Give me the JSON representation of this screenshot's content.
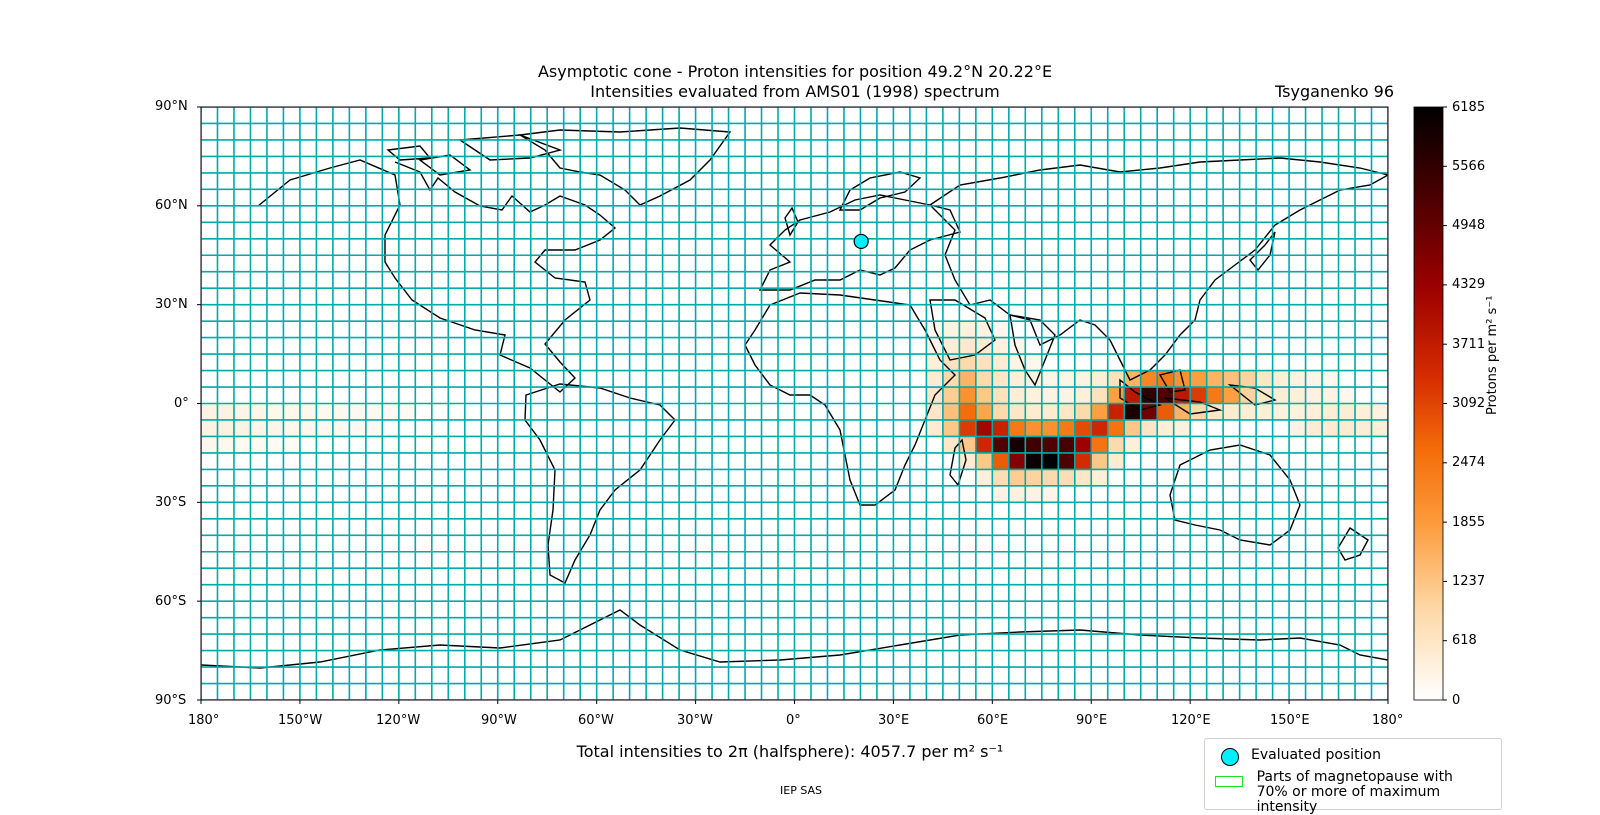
{
  "title_line1": "Asymptotic cone - Proton intensities for position 49.2°N 20.22°E",
  "title_line2": "Intensities evaluated from AMS01 (1998) spectrum",
  "model": "Tsyganenko 96",
  "lat_labels": [
    "90°N",
    "60°N",
    "30°N",
    "0°",
    "30°S",
    "60°S",
    "90°S"
  ],
  "lon_labels": [
    "180°",
    "150°W",
    "120°W",
    "90°W",
    "60°W",
    "30°W",
    "0°",
    "30°E",
    "60°E",
    "90°E",
    "120°E",
    "150°E",
    "180°"
  ],
  "colorbar": {
    "label": "Protons per m² s⁻¹",
    "ticks": [
      "6185",
      "5566",
      "4948",
      "4329",
      "3711",
      "3092",
      "2474",
      "1855",
      "1237",
      "618",
      "0"
    ],
    "min": 0,
    "max": 6185
  },
  "total_text": "Total intensities to 2π (halfsphere): 4057.7 per m² s⁻¹",
  "credit": "IEP SAS",
  "legend": {
    "evaluated": "Evaluated position",
    "magnetopause_line1": "Parts of magnetopause with",
    "magnetopause_line2": "70% or more of maximum intensity"
  },
  "evaluated_position": {
    "lat": 49.2,
    "lon": 20.22
  },
  "grid": {
    "lon_step_deg": 5,
    "lat_step_deg": 5
  },
  "colors": {
    "grid": "#00aaaa",
    "position_marker": "#00f0ff",
    "legend_magnetopause": "#22e022"
  },
  "intensity_cells": [
    {
      "lon": -180,
      "lat": -5,
      "v": 300
    },
    {
      "lon": -175,
      "lat": -5,
      "v": 300
    },
    {
      "lon": -170,
      "lat": -5,
      "v": 250
    },
    {
      "lon": -165,
      "lat": -5,
      "v": 250
    },
    {
      "lon": -160,
      "lat": -5,
      "v": 200
    },
    {
      "lon": -155,
      "lat": -5,
      "v": 200
    },
    {
      "lon": -150,
      "lat": -5,
      "v": 200
    },
    {
      "lon": -145,
      "lat": -5,
      "v": 180
    },
    {
      "lon": -140,
      "lat": -5,
      "v": 180
    },
    {
      "lon": -135,
      "lat": -5,
      "v": 160
    },
    {
      "lon": -130,
      "lat": -5,
      "v": 160
    },
    {
      "lon": -125,
      "lat": -5,
      "v": 150
    },
    {
      "lon": -120,
      "lat": -5,
      "v": 150
    },
    {
      "lon": -180,
      "lat": -10,
      "v": 300
    },
    {
      "lon": -175,
      "lat": -10,
      "v": 350
    },
    {
      "lon": -170,
      "lat": -10,
      "v": 300
    },
    {
      "lon": -165,
      "lat": -10,
      "v": 250
    },
    {
      "lon": -160,
      "lat": -10,
      "v": 250
    },
    {
      "lon": -155,
      "lat": -10,
      "v": 200
    },
    {
      "lon": -150,
      "lat": -10,
      "v": 200
    },
    {
      "lon": -145,
      "lat": -10,
      "v": 180
    },
    {
      "lon": -140,
      "lat": -10,
      "v": 180
    },
    {
      "lon": -135,
      "lat": -10,
      "v": 160
    },
    {
      "lon": -130,
      "lat": -10,
      "v": 150
    },
    {
      "lon": -180,
      "lat": -15,
      "v": 200
    },
    {
      "lon": -175,
      "lat": -15,
      "v": 200
    },
    {
      "lon": -170,
      "lat": -15,
      "v": 150
    },
    {
      "lon": -165,
      "lat": -15,
      "v": 150
    },
    {
      "lon": -160,
      "lat": -15,
      "v": 120
    },
    {
      "lon": -155,
      "lat": -15,
      "v": 100
    },
    {
      "lon": 40,
      "lat": 20,
      "v": 200
    },
    {
      "lon": 45,
      "lat": 20,
      "v": 300
    },
    {
      "lon": 50,
      "lat": 20,
      "v": 350
    },
    {
      "lon": 55,
      "lat": 20,
      "v": 300
    },
    {
      "lon": 60,
      "lat": 20,
      "v": 200
    },
    {
      "lon": 40,
      "lat": 15,
      "v": 300
    },
    {
      "lon": 45,
      "lat": 15,
      "v": 450
    },
    {
      "lon": 50,
      "lat": 15,
      "v": 550
    },
    {
      "lon": 55,
      "lat": 15,
      "v": 500
    },
    {
      "lon": 60,
      "lat": 15,
      "v": 350
    },
    {
      "lon": 65,
      "lat": 15,
      "v": 200
    },
    {
      "lon": 40,
      "lat": 10,
      "v": 400
    },
    {
      "lon": 45,
      "lat": 10,
      "v": 700
    },
    {
      "lon": 50,
      "lat": 10,
      "v": 900
    },
    {
      "lon": 55,
      "lat": 10,
      "v": 700
    },
    {
      "lon": 60,
      "lat": 10,
      "v": 450
    },
    {
      "lon": 65,
      "lat": 10,
      "v": 300
    },
    {
      "lon": 70,
      "lat": 10,
      "v": 200
    },
    {
      "lon": 40,
      "lat": 5,
      "v": 500
    },
    {
      "lon": 45,
      "lat": 5,
      "v": 900
    },
    {
      "lon": 50,
      "lat": 5,
      "v": 1500
    },
    {
      "lon": 55,
      "lat": 5,
      "v": 900
    },
    {
      "lon": 60,
      "lat": 5,
      "v": 600
    },
    {
      "lon": 65,
      "lat": 5,
      "v": 400
    },
    {
      "lon": 70,
      "lat": 5,
      "v": 300
    },
    {
      "lon": 75,
      "lat": 5,
      "v": 250
    },
    {
      "lon": 80,
      "lat": 5,
      "v": 250
    },
    {
      "lon": 85,
      "lat": 5,
      "v": 300
    },
    {
      "lon": 90,
      "lat": 5,
      "v": 400
    },
    {
      "lon": 95,
      "lat": 5,
      "v": 700
    },
    {
      "lon": 100,
      "lat": 5,
      "v": 1500
    },
    {
      "lon": 105,
      "lat": 5,
      "v": 2200
    },
    {
      "lon": 110,
      "lat": 5,
      "v": 2400
    },
    {
      "lon": 115,
      "lat": 5,
      "v": 2000
    },
    {
      "lon": 120,
      "lat": 5,
      "v": 1800
    },
    {
      "lon": 125,
      "lat": 5,
      "v": 1500
    },
    {
      "lon": 130,
      "lat": 5,
      "v": 1300
    },
    {
      "lon": 135,
      "lat": 5,
      "v": 1000
    },
    {
      "lon": 140,
      "lat": 5,
      "v": 600
    },
    {
      "lon": 145,
      "lat": 5,
      "v": 400
    },
    {
      "lon": 150,
      "lat": 5,
      "v": 300
    },
    {
      "lon": 155,
      "lat": 5,
      "v": 250
    },
    {
      "lon": 160,
      "lat": 5,
      "v": 200
    },
    {
      "lon": 40,
      "lat": 0,
      "v": 600
    },
    {
      "lon": 45,
      "lat": 0,
      "v": 1100
    },
    {
      "lon": 50,
      "lat": 0,
      "v": 2000
    },
    {
      "lon": 55,
      "lat": 0,
      "v": 1200
    },
    {
      "lon": 60,
      "lat": 0,
      "v": 700
    },
    {
      "lon": 65,
      "lat": 0,
      "v": 450
    },
    {
      "lon": 70,
      "lat": 0,
      "v": 350
    },
    {
      "lon": 75,
      "lat": 0,
      "v": 300
    },
    {
      "lon": 80,
      "lat": 0,
      "v": 300
    },
    {
      "lon": 85,
      "lat": 0,
      "v": 400
    },
    {
      "lon": 90,
      "lat": 0,
      "v": 700
    },
    {
      "lon": 95,
      "lat": 0,
      "v": 1800
    },
    {
      "lon": 100,
      "lat": 0,
      "v": 3800
    },
    {
      "lon": 105,
      "lat": 0,
      "v": 5600
    },
    {
      "lon": 110,
      "lat": 0,
      "v": 5200
    },
    {
      "lon": 115,
      "lat": 0,
      "v": 3800
    },
    {
      "lon": 120,
      "lat": 0,
      "v": 3200
    },
    {
      "lon": 125,
      "lat": 0,
      "v": 2400
    },
    {
      "lon": 130,
      "lat": 0,
      "v": 1800
    },
    {
      "lon": 135,
      "lat": 0,
      "v": 1000
    },
    {
      "lon": 140,
      "lat": 0,
      "v": 600
    },
    {
      "lon": 145,
      "lat": 0,
      "v": 450
    },
    {
      "lon": 150,
      "lat": 0,
      "v": 400
    },
    {
      "lon": 155,
      "lat": 0,
      "v": 350
    },
    {
      "lon": 160,
      "lat": 0,
      "v": 300
    },
    {
      "lon": 165,
      "lat": 0,
      "v": 200
    },
    {
      "lon": 40,
      "lat": -5,
      "v": 600
    },
    {
      "lon": 45,
      "lat": -5,
      "v": 1300
    },
    {
      "lon": 50,
      "lat": -5,
      "v": 2600
    },
    {
      "lon": 55,
      "lat": -5,
      "v": 1700
    },
    {
      "lon": 60,
      "lat": -5,
      "v": 900
    },
    {
      "lon": 65,
      "lat": -5,
      "v": 600
    },
    {
      "lon": 70,
      "lat": -5,
      "v": 500
    },
    {
      "lon": 75,
      "lat": -5,
      "v": 500
    },
    {
      "lon": 80,
      "lat": -5,
      "v": 600
    },
    {
      "lon": 85,
      "lat": -5,
      "v": 900
    },
    {
      "lon": 90,
      "lat": -5,
      "v": 1800
    },
    {
      "lon": 95,
      "lat": -5,
      "v": 3600
    },
    {
      "lon": 100,
      "lat": -5,
      "v": 5800
    },
    {
      "lon": 105,
      "lat": -5,
      "v": 4800
    },
    {
      "lon": 110,
      "lat": -5,
      "v": 2800
    },
    {
      "lon": 115,
      "lat": -5,
      "v": 1500
    },
    {
      "lon": 120,
      "lat": -5,
      "v": 900
    },
    {
      "lon": 125,
      "lat": -5,
      "v": 600
    },
    {
      "lon": 130,
      "lat": -5,
      "v": 500
    },
    {
      "lon": 135,
      "lat": -5,
      "v": 450
    },
    {
      "lon": 140,
      "lat": -5,
      "v": 400
    },
    {
      "lon": 145,
      "lat": -5,
      "v": 350
    },
    {
      "lon": 150,
      "lat": -5,
      "v": 350
    },
    {
      "lon": 155,
      "lat": -5,
      "v": 400
    },
    {
      "lon": 160,
      "lat": -5,
      "v": 450
    },
    {
      "lon": 165,
      "lat": -5,
      "v": 450
    },
    {
      "lon": 170,
      "lat": -5,
      "v": 400
    },
    {
      "lon": 175,
      "lat": -5,
      "v": 350
    },
    {
      "lon": 40,
      "lat": -10,
      "v": 500
    },
    {
      "lon": 45,
      "lat": -10,
      "v": 1200
    },
    {
      "lon": 50,
      "lat": -10,
      "v": 3200
    },
    {
      "lon": 55,
      "lat": -10,
      "v": 4200
    },
    {
      "lon": 60,
      "lat": -10,
      "v": 3600
    },
    {
      "lon": 65,
      "lat": -10,
      "v": 2400
    },
    {
      "lon": 70,
      "lat": -10,
      "v": 2000
    },
    {
      "lon": 75,
      "lat": -10,
      "v": 2000
    },
    {
      "lon": 80,
      "lat": -10,
      "v": 2400
    },
    {
      "lon": 85,
      "lat": -10,
      "v": 3000
    },
    {
      "lon": 90,
      "lat": -10,
      "v": 3500
    },
    {
      "lon": 95,
      "lat": -10,
      "v": 2500
    },
    {
      "lon": 100,
      "lat": -10,
      "v": 1200
    },
    {
      "lon": 105,
      "lat": -10,
      "v": 600
    },
    {
      "lon": 110,
      "lat": -10,
      "v": 400
    },
    {
      "lon": 115,
      "lat": -10,
      "v": 350
    },
    {
      "lon": 150,
      "lat": -10,
      "v": 300
    },
    {
      "lon": 155,
      "lat": -10,
      "v": 450
    },
    {
      "lon": 160,
      "lat": -10,
      "v": 500
    },
    {
      "lon": 165,
      "lat": -10,
      "v": 500
    },
    {
      "lon": 170,
      "lat": -10,
      "v": 450
    },
    {
      "lon": 175,
      "lat": -10,
      "v": 400
    },
    {
      "lon": 45,
      "lat": -15,
      "v": 600
    },
    {
      "lon": 50,
      "lat": -15,
      "v": 1200
    },
    {
      "lon": 55,
      "lat": -15,
      "v": 3500
    },
    {
      "lon": 60,
      "lat": -15,
      "v": 5200
    },
    {
      "lon": 65,
      "lat": -15,
      "v": 5900
    },
    {
      "lon": 70,
      "lat": -15,
      "v": 5400
    },
    {
      "lon": 75,
      "lat": -15,
      "v": 5200
    },
    {
      "lon": 80,
      "lat": -15,
      "v": 5300
    },
    {
      "lon": 85,
      "lat": -15,
      "v": 4300
    },
    {
      "lon": 90,
      "lat": -15,
      "v": 2500
    },
    {
      "lon": 95,
      "lat": -15,
      "v": 900
    },
    {
      "lon": 100,
      "lat": -15,
      "v": 400
    },
    {
      "lon": 50,
      "lat": -20,
      "v": 500
    },
    {
      "lon": 55,
      "lat": -20,
      "v": 1200
    },
    {
      "lon": 60,
      "lat": -20,
      "v": 2800
    },
    {
      "lon": 65,
      "lat": -20,
      "v": 4600
    },
    {
      "lon": 70,
      "lat": -20,
      "v": 6000
    },
    {
      "lon": 75,
      "lat": -20,
      "v": 6185
    },
    {
      "lon": 80,
      "lat": -20,
      "v": 5200
    },
    {
      "lon": 85,
      "lat": -20,
      "v": 3400
    },
    {
      "lon": 90,
      "lat": -20,
      "v": 1200
    },
    {
      "lon": 95,
      "lat": -20,
      "v": 500
    },
    {
      "lon": 55,
      "lat": -25,
      "v": 400
    },
    {
      "lon": 60,
      "lat": -25,
      "v": 800
    },
    {
      "lon": 65,
      "lat": -25,
      "v": 1100
    },
    {
      "lon": 70,
      "lat": -25,
      "v": 1000
    },
    {
      "lon": 75,
      "lat": -25,
      "v": 900
    },
    {
      "lon": 80,
      "lat": -25,
      "v": 800
    },
    {
      "lon": 85,
      "lat": -25,
      "v": 600
    },
    {
      "lon": 90,
      "lat": -25,
      "v": 400
    },
    {
      "lon": 60,
      "lat": -30,
      "v": 300
    },
    {
      "lon": 65,
      "lat": -30,
      "v": 350
    },
    {
      "lon": 70,
      "lat": -30,
      "v": 300
    },
    {
      "lon": 75,
      "lat": -30,
      "v": 250
    }
  ]
}
